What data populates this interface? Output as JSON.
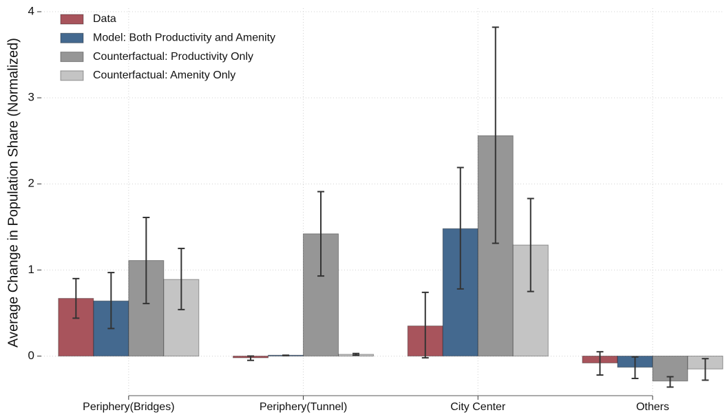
{
  "chart_data": {
    "type": "bar",
    "y_label": "Average Change in Population Share (Normalized)",
    "categories": [
      "Periphery(Bridges)",
      "Periphery(Tunnel)",
      "City Center",
      "Others"
    ],
    "series": [
      {
        "name": "Data",
        "color": "#a8545c",
        "values": [
          0.67,
          -0.02,
          0.35,
          -0.08
        ],
        "err_low": [
          0.44,
          -0.05,
          -0.02,
          -0.22
        ],
        "err_high": [
          0.9,
          0.0,
          0.74,
          0.05
        ]
      },
      {
        "name": "Model: Both Productivity and Amenity",
        "color": "#44698f",
        "values": [
          0.64,
          0.01,
          1.48,
          -0.13
        ],
        "err_low": [
          0.32,
          0.005,
          0.78,
          -0.26
        ],
        "err_high": [
          0.97,
          0.01,
          2.19,
          -0.01
        ]
      },
      {
        "name": "Counterfactual: Productivity Only",
        "color": "#969696",
        "values": [
          1.11,
          1.42,
          2.56,
          -0.29
        ],
        "err_low": [
          0.61,
          0.93,
          1.31,
          -0.36
        ],
        "err_high": [
          1.61,
          1.91,
          3.82,
          -0.24
        ]
      },
      {
        "name": "Counterfactual: Amenity Only",
        "color": "#c4c4c4",
        "values": [
          0.89,
          0.02,
          1.29,
          -0.15
        ],
        "err_low": [
          0.54,
          0.01,
          0.75,
          -0.28
        ],
        "err_high": [
          1.25,
          0.03,
          1.83,
          -0.03
        ]
      }
    ],
    "ylim": [
      -0.46,
      4
    ],
    "yticks": [
      0,
      1,
      2,
      3,
      4
    ],
    "grid": true,
    "legend": "top-left"
  }
}
